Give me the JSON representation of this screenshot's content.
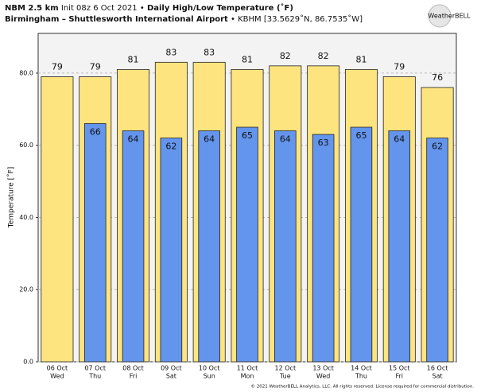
{
  "chart_data": {
    "type": "bar",
    "model": "NBM 2.5 km",
    "init": "Init 08z 6 Oct 2021 •",
    "title": "Daily High/Low Temperature (˚F)",
    "station": "Birmingham – Shuttlesworth International Airport",
    "station_info": "• KBHM [33.5629˚N, 86.7535˚W]",
    "logo": "WeatherBELL",
    "copyright": "© 2021 WeatherBELL Analytics, LLC. All rights reserved. License required for commercial distribution.",
    "ylabel": "Temperature [˚F]",
    "categories": [
      "06 Oct",
      "07 Oct",
      "08 Oct",
      "09 Oct",
      "10 Oct",
      "11 Oct",
      "12 Oct",
      "13 Oct",
      "14 Oct",
      "15 Oct",
      "16 Oct"
    ],
    "weekdays": [
      "Wed",
      "Thu",
      "Fri",
      "Sat",
      "Sun",
      "Mon",
      "Tue",
      "Wed",
      "Thu",
      "Fri",
      "Sat"
    ],
    "series": [
      {
        "color": "#fde47f",
        "values": [
          79,
          79,
          81,
          83,
          83,
          81,
          82,
          82,
          81,
          79,
          76
        ]
      },
      {
        "color": "#6495ed",
        "values": [
          null,
          66,
          64,
          62,
          64,
          65,
          64,
          63,
          65,
          64,
          62
        ]
      }
    ],
    "ylim": [
      0,
      91
    ],
    "yticks": [
      {
        "value": 0,
        "label": "0.0"
      },
      {
        "value": 20,
        "label": "20.0"
      },
      {
        "value": 40,
        "label": "40.0"
      },
      {
        "value": 60,
        "label": "60.0"
      },
      {
        "value": 80,
        "label": "80.0"
      }
    ],
    "grid": true
  }
}
